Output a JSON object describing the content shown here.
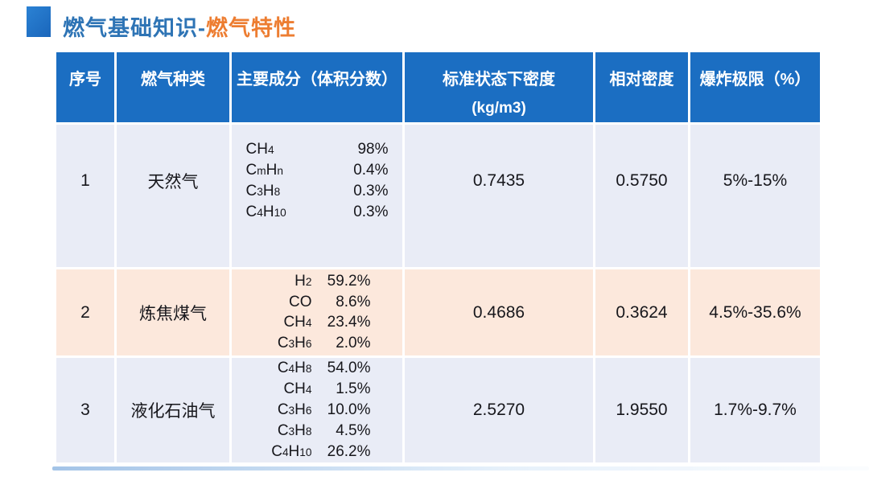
{
  "slide": {
    "title_prefix": "燃气基础知识-",
    "title_highlight": "燃气特性",
    "colors": {
      "header_blue": "#1b6ec2",
      "title_blue": "#2e74b5",
      "title_orange": "#ed7d31",
      "row_lavender": "#e9ecf6",
      "row_peach": "#fce8dc"
    }
  },
  "table": {
    "columns": [
      {
        "label": "序号"
      },
      {
        "label": "燃气种类"
      },
      {
        "label": "主要成分（体积分数）"
      },
      {
        "label": "标准状态下密度",
        "sublabel": "(kg/m3)"
      },
      {
        "label": "相对密度"
      },
      {
        "label": "爆炸极限（%）"
      }
    ],
    "rows": [
      {
        "index": "1",
        "gas_type": "天然气",
        "composition": [
          {
            "formula": "CH4",
            "percent": "98%"
          },
          {
            "formula": "CmHn",
            "percent": "0.4%"
          },
          {
            "formula": "C3H8",
            "percent": "0.3%"
          },
          {
            "formula": "C4H10",
            "percent": "0.3%"
          }
        ],
        "density_standard": "0.7435",
        "relative_density": "0.5750",
        "explosion_limit": "5%-15%"
      },
      {
        "index": "2",
        "gas_type": "炼焦煤气",
        "composition": [
          {
            "formula": "H2",
            "percent": "59.2%"
          },
          {
            "formula": "CO",
            "percent": "8.6%"
          },
          {
            "formula": "CH4",
            "percent": "23.4%"
          },
          {
            "formula": "C3H6",
            "percent": "2.0%"
          }
        ],
        "density_standard": "0.4686",
        "relative_density": "0.3624",
        "explosion_limit": "4.5%-35.6%"
      },
      {
        "index": "3",
        "gas_type": "液化石油气",
        "composition": [
          {
            "formula": "C4H8",
            "percent": "54.0%"
          },
          {
            "formula": "CH4",
            "percent": "1.5%"
          },
          {
            "formula": "C3H6",
            "percent": "10.0%"
          },
          {
            "formula": "C3H8",
            "percent": "4.5%"
          },
          {
            "formula": "C4H10",
            "percent": "26.2%"
          }
        ],
        "density_standard": "2.5270",
        "relative_density": "1.9550",
        "explosion_limit": "1.7%-9.7%"
      }
    ]
  }
}
